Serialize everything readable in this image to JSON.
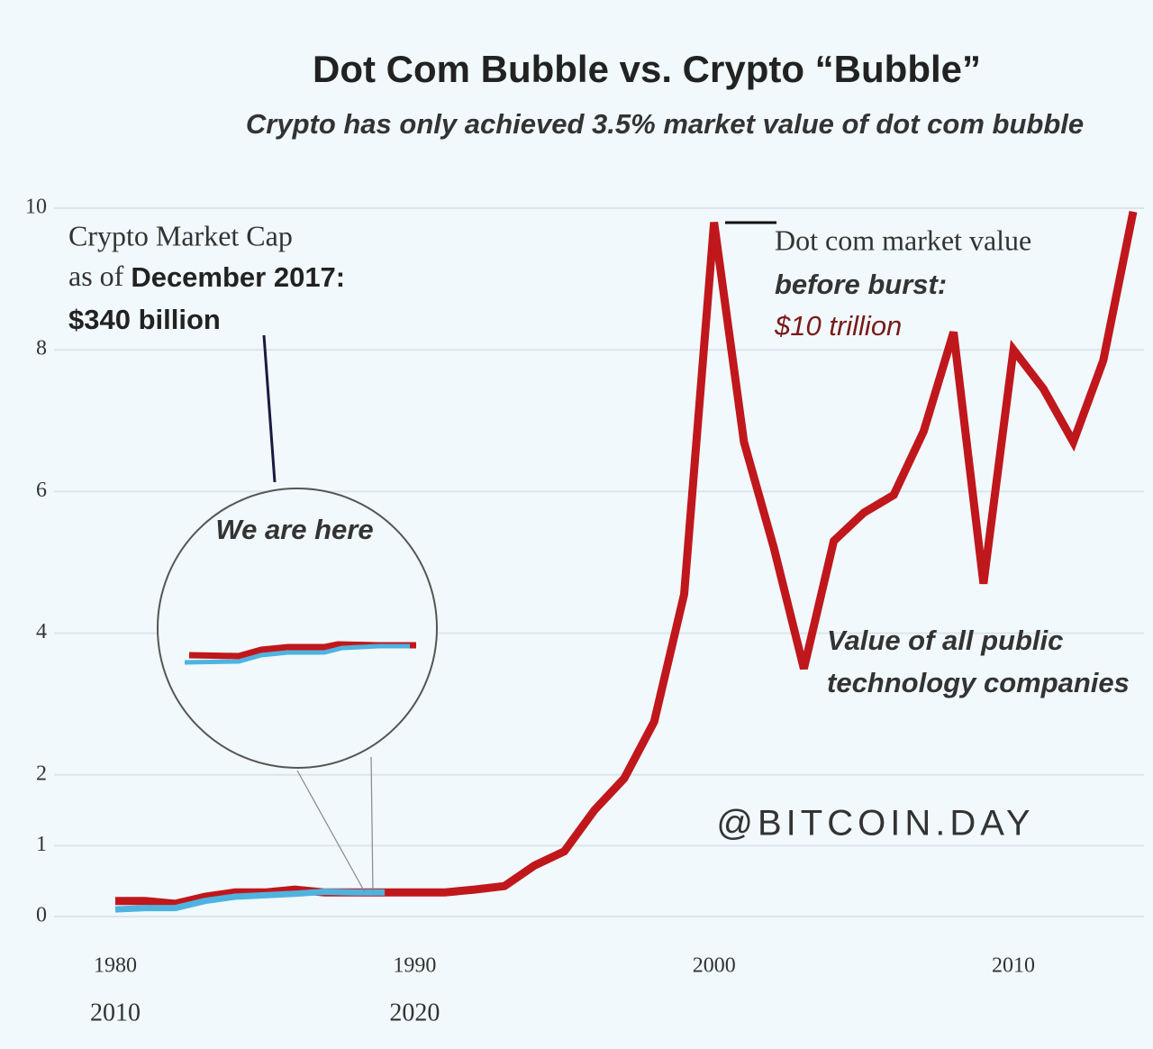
{
  "chart_data": {
    "type": "line",
    "title": "Dot Com Bubble vs. Crypto “Bubble”",
    "subtitle": "Crypto has only achieved 3.5% market value of dot com bubble",
    "x": [
      1980,
      1981,
      1982,
      1983,
      1984,
      1985,
      1986,
      1987,
      1988,
      1989,
      1990,
      1991,
      1992,
      1993,
      1994,
      1995,
      1996,
      1997,
      1998,
      1999,
      2000,
      2001,
      2002,
      2003,
      2004,
      2005,
      2006,
      2007,
      2008,
      2009,
      2010,
      2011,
      2012,
      2013,
      2014
    ],
    "series": [
      {
        "name": "Value of all public technology companies",
        "color": "#c0171c",
        "values": [
          0.22,
          0.22,
          0.18,
          0.28,
          0.34,
          0.34,
          0.38,
          0.34,
          0.34,
          0.34,
          0.34,
          0.34,
          0.38,
          0.43,
          0.72,
          0.92,
          1.5,
          1.95,
          2.75,
          4.55,
          9.8,
          6.7,
          5.2,
          3.5,
          5.3,
          5.7,
          5.95,
          6.85,
          8.25,
          4.7,
          8.0,
          7.45,
          6.7,
          7.85,
          9.95
        ]
      },
      {
        "name": "Crypto Market Cap",
        "color": "#4fb3e0",
        "values": [
          0.1,
          0.12,
          0.12,
          0.22,
          0.28,
          0.3,
          0.32,
          0.35,
          0.34,
          0.34,
          null,
          null,
          null,
          null,
          null,
          null,
          null,
          null,
          null,
          null,
          null,
          null,
          null,
          null,
          null,
          null,
          null,
          null,
          null,
          null,
          null,
          null,
          null,
          null,
          null
        ]
      }
    ],
    "xlim": [
      1980,
      2014
    ],
    "xticks": [
      1980,
      1990,
      2000,
      2010
    ],
    "xticks2": [
      {
        "value": 1980,
        "label": "2010"
      },
      {
        "value": 1990,
        "label": "2020"
      }
    ],
    "ylim": [
      0,
      10
    ],
    "yticks": [
      0,
      1,
      2,
      4,
      6,
      8,
      10
    ],
    "grid": true,
    "annotations": {
      "crypto": {
        "line1": "Crypto Market Cap",
        "line2a": "as of ",
        "line2b": "December 2017:",
        "line3": "$340 billion"
      },
      "dotcom": {
        "line1": "Dot com market value",
        "line2": "before burst:",
        "line3": "$10 trillion"
      },
      "tech": {
        "line1": "Value of all public",
        "line2": "technology companies"
      },
      "here": "We are here",
      "watermark": "@BITCOIN.DAY"
    }
  }
}
